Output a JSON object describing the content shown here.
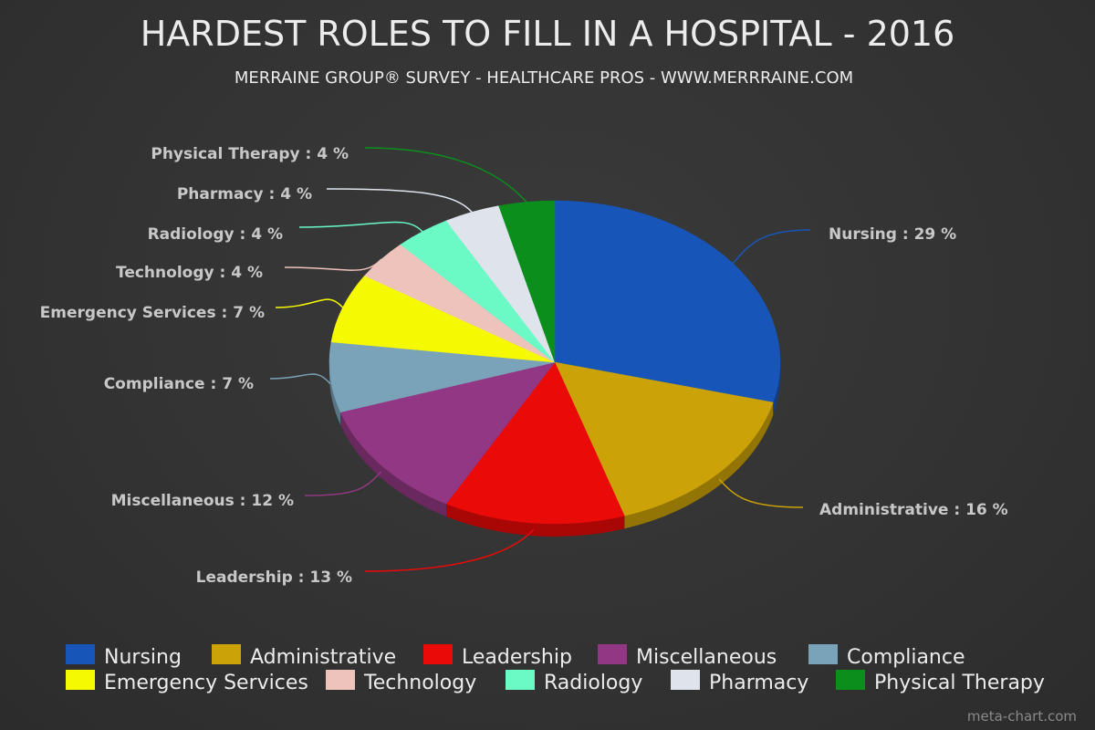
{
  "chart_data": {
    "type": "pie",
    "title": "HARDEST ROLES TO FILL IN A HOSPITAL - 2016",
    "subtitle": "MERRAINE GROUP® SURVEY - HEALTHCARE PROS - WWW.MERRRAINE.COM",
    "label_format": "{name} : {value} %",
    "legend_position": "bottom",
    "slices": [
      {
        "name": "Nursing",
        "value": 29,
        "color": "#1756b8"
      },
      {
        "name": "Administrative",
        "value": 16,
        "color": "#cba207"
      },
      {
        "name": "Leadership",
        "value": 13,
        "color": "#ea0a08"
      },
      {
        "name": "Miscellaneous",
        "value": 12,
        "color": "#923783"
      },
      {
        "name": "Compliance",
        "value": 7,
        "color": "#7aa3b9"
      },
      {
        "name": "Emergency Services",
        "value": 7,
        "color": "#f5fa03"
      },
      {
        "name": "Technology",
        "value": 4,
        "color": "#eec3bb"
      },
      {
        "name": "Radiology",
        "value": 4,
        "color": "#6bfac6"
      },
      {
        "name": "Pharmacy",
        "value": 4,
        "color": "#dfe4ec"
      },
      {
        "name": "Physical Therapy",
        "value": 4,
        "color": "#0b8e1c"
      }
    ]
  },
  "credit": "meta-chart.com"
}
